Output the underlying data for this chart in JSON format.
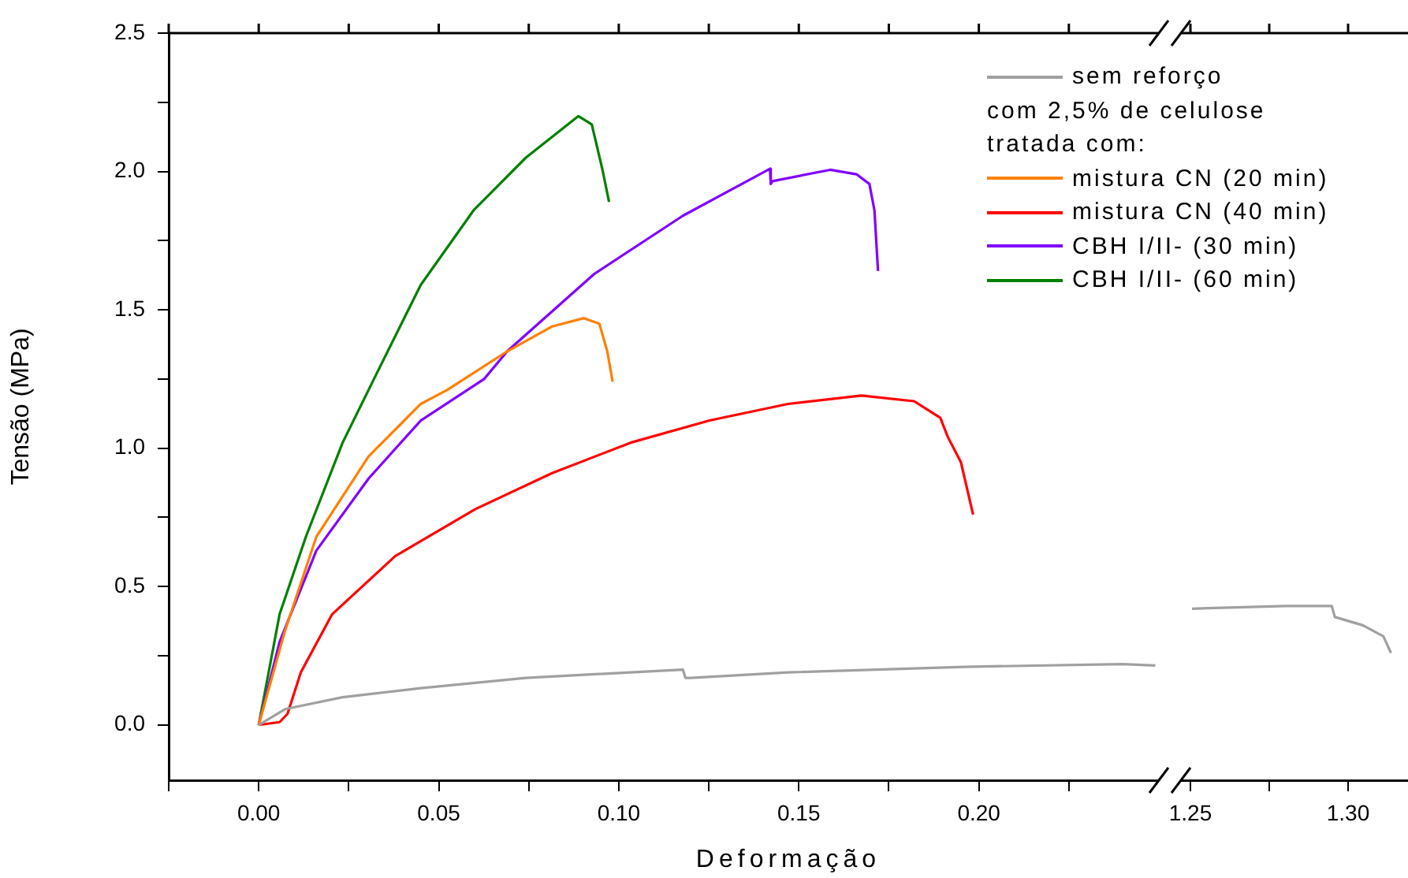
{
  "chart_data": [
    {
      "type": "line",
      "xlabel": "Deformação",
      "ylabel": "Tensão (MPa)",
      "legend": "top right",
      "marker": "none",
      "line_style": "solid",
      "grid": false,
      "annotations": [
        "com 2,5% de celulose\ntratada com:"
      ],
      "xlim": [
        -0.025,
        0.25
      ],
      "xticks": [
        {
          "value": -0.025,
          "label": null
        },
        {
          "value": 0,
          "label": "0.00"
        },
        {
          "value": 0.025,
          "label": null
        },
        0.05,
        {
          "value": 0.075,
          "label": null
        },
        {
          "value": 0.1,
          "label": "0.10"
        },
        {
          "value": 0.125,
          "label": null
        },
        0.15,
        {
          "value": 0.175,
          "label": null
        },
        {
          "value": 0.2,
          "label": "0.20"
        },
        {
          "value": 0.225,
          "label": null
        }
      ],
      "ylim": [
        -0.2,
        2.5
      ],
      "yticks": [
        {
          "value": 0,
          "label": "0.0"
        },
        {
          "value": 0.25,
          "label": null
        },
        0.5,
        {
          "value": 0.75,
          "label": null
        },
        {
          "value": 1,
          "label": "1.0"
        },
        {
          "value": 1.25,
          "label": null
        },
        1.5,
        {
          "value": 1.75,
          "label": null
        },
        {
          "value": 2,
          "label": "2.0"
        },
        {
          "value": 2.25,
          "label": null
        },
        2.5
      ],
      "series": [
        {
          "name": "sem reforço",
          "color": "#a0a0a0",
          "x": [
            0,
            0.0073,
            0.0233,
            0.045,
            0.0742,
            0.1178,
            0.1185,
            0.12,
            0.147,
            0.196,
            0.24,
            0.249
          ],
          "values": [
            0,
            0.057,
            0.1,
            0.133,
            0.17,
            0.2,
            0.17,
            0.17,
            0.19,
            0.21,
            0.22,
            0.215
          ]
        },
        {
          "name": "mistura CN (20 min)",
          "color": "#ff8000",
          "x": [
            0,
            0.0073,
            0.016,
            0.0305,
            0.045,
            0.0523,
            0.069,
            0.0815,
            0.0903,
            0.0946,
            0.0968,
            0.0983
          ],
          "values": [
            0,
            0.34,
            0.68,
            0.97,
            1.16,
            1.21,
            1.35,
            1.44,
            1.47,
            1.45,
            1.35,
            1.24
          ]
        },
        {
          "name": "mistura CN (40 min)",
          "color": "#ff0000",
          "x": [
            0,
            0.0058,
            0.008,
            0.0117,
            0.0204,
            0.0379,
            0.0602,
            0.0815,
            0.1033,
            0.1252,
            0.147,
            0.1674,
            0.182,
            0.1893,
            0.1914,
            0.195,
            0.1984
          ],
          "values": [
            0,
            0.01,
            0.04,
            0.19,
            0.4,
            0.61,
            0.78,
            0.91,
            1.02,
            1.1,
            1.16,
            1.19,
            1.17,
            1.11,
            1.04,
            0.95,
            0.76
          ]
        },
        {
          "name": "CBH I/II- (30 min)",
          "color": "#8000ff",
          "x": [
            0,
            0.0058,
            0.016,
            0.0305,
            0.045,
            0.0626,
            0.069,
            0.0932,
            0.1178,
            0.142,
            0.1422,
            0.1427,
            0.1587,
            0.166,
            0.1696,
            0.171,
            0.172
          ],
          "values": [
            0,
            0.3,
            0.63,
            0.89,
            1.1,
            1.25,
            1.35,
            1.63,
            1.84,
            2.01,
            1.955,
            1.965,
            2.006,
            1.99,
            1.955,
            1.86,
            1.64
          ]
        },
        {
          "name": "CBH I/II- (60 min)",
          "color": "#008000",
          "x": [
            0,
            0.0058,
            0.0131,
            0.0233,
            0.032,
            0.045,
            0.0597,
            0.0742,
            0.0888,
            0.0925,
            0.0954,
            0.0973
          ],
          "values": [
            0,
            0.4,
            0.68,
            1.02,
            1.25,
            1.59,
            1.86,
            2.05,
            2.2,
            2.17,
            2.01,
            1.89
          ]
        }
      ]
    },
    {
      "type": "line",
      "marker": "none",
      "line_style": "solid",
      "grid": false,
      "tick_labels": "x",
      "xlim": [
        1.246,
        1.319
      ],
      "xticks": [
        1.25,
        {
          "value": 1.275,
          "label": null
        },
        {
          "value": 1.3,
          "label": "1.30"
        }
      ],
      "ylim": [
        -0.2,
        2.5
      ],
      "yticks": [
        0,
        0.5,
        1,
        1.5,
        2,
        2.5
      ],
      "series": [
        {
          "color": "#a0a0a0",
          "x": [
            1.2505,
            1.2803,
            1.2948,
            1.2958,
            1.3047,
            1.3112,
            1.3136
          ],
          "values": [
            0.42,
            0.43,
            0.43,
            0.39,
            0.36,
            0.32,
            0.26
          ]
        }
      ]
    }
  ]
}
